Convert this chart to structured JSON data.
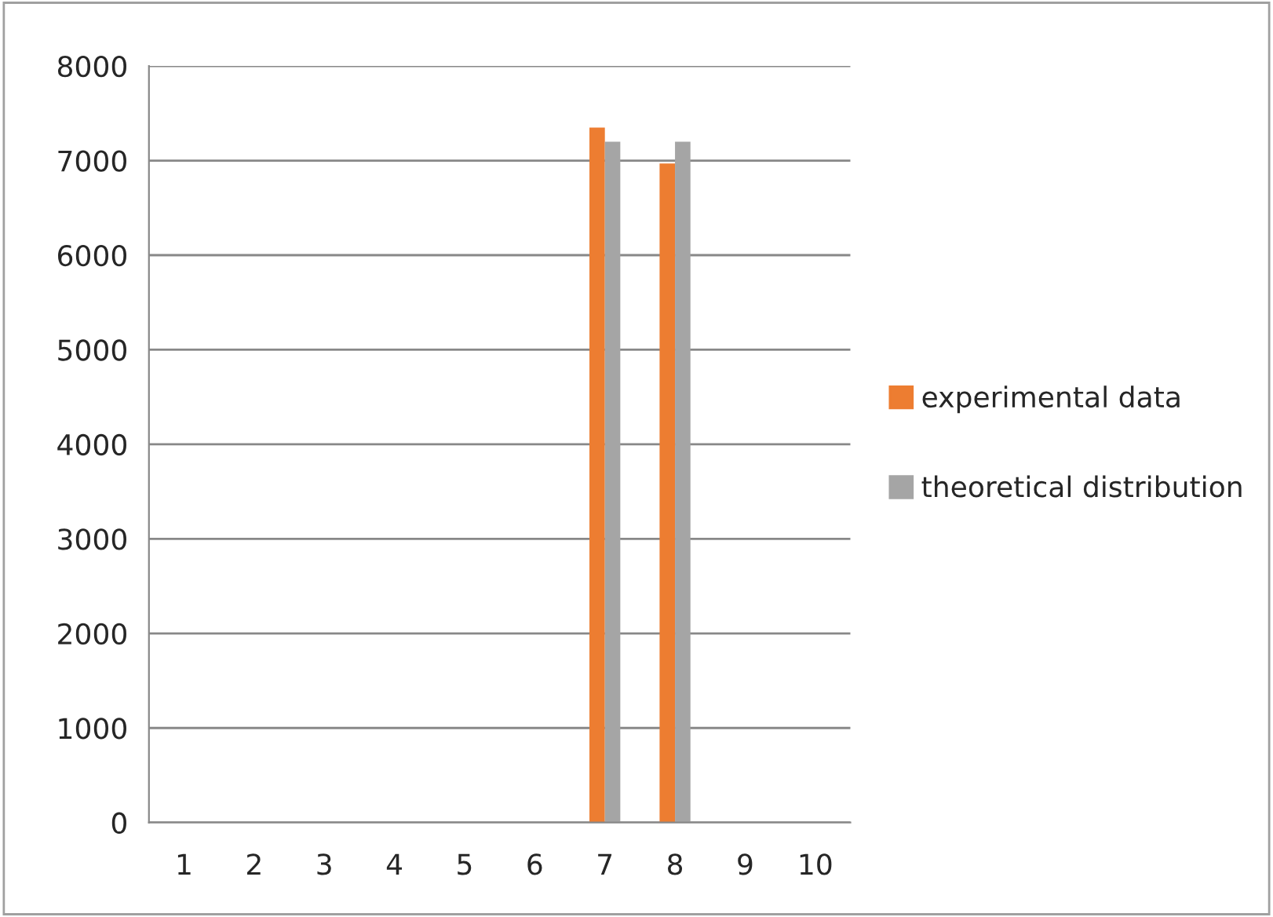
{
  "chart_data": {
    "type": "bar",
    "categories": [
      "1",
      "2",
      "3",
      "4",
      "5",
      "6",
      "7",
      "8",
      "9",
      "10"
    ],
    "series": [
      {
        "name": "experimental data",
        "color": "#ed7d31",
        "values": [
          0,
          0,
          0,
          0,
          0,
          0,
          7350,
          6970,
          0,
          0
        ]
      },
      {
        "name": "theoretical distribution",
        "color": "#a5a5a5",
        "values": [
          0,
          0,
          0,
          0,
          0,
          0,
          7200,
          7200,
          0,
          0
        ]
      }
    ],
    "ylim": [
      0,
      8000
    ],
    "yticks": [
      0,
      1000,
      2000,
      3000,
      4000,
      5000,
      6000,
      7000,
      8000
    ],
    "grid": "y",
    "legend": "right"
  }
}
